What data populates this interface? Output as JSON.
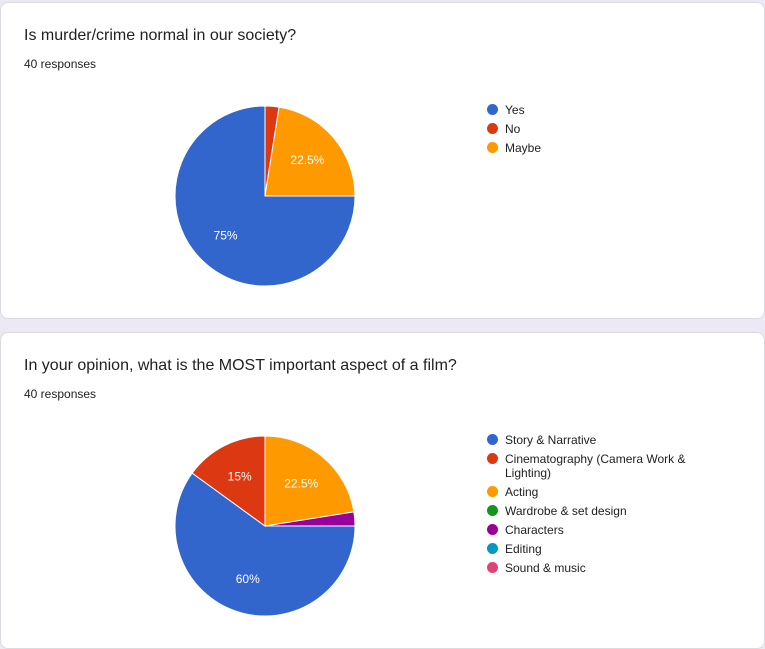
{
  "chart_data": [
    {
      "type": "pie",
      "title": "Is murder/crime normal in our society?",
      "responses": "40 responses",
      "categories": [
        "Yes",
        "No",
        "Maybe"
      ],
      "values": [
        75,
        2.5,
        22.5
      ],
      "colors": [
        "#3366cc",
        "#dc3912",
        "#ff9900"
      ],
      "data_labels": [
        "75%",
        "",
        "22.5%"
      ],
      "draw_order": [
        1,
        2,
        0
      ],
      "legend": "right"
    },
    {
      "type": "pie",
      "title": "In your opinion, what is the MOST important aspect of a film?",
      "responses": "40 responses",
      "categories": [
        "Story & Narrative",
        "Cinematography (Camera Work & Lighting)",
        "Acting",
        "Wardrobe & set design",
        "Characters",
        "Editing",
        "Sound & music"
      ],
      "values": [
        60,
        15,
        22.5,
        0,
        2.5,
        0,
        0
      ],
      "colors": [
        "#3366cc",
        "#dc3912",
        "#ff9900",
        "#109618",
        "#990099",
        "#0099c6",
        "#dd4477"
      ],
      "data_labels": [
        "60%",
        "15%",
        "22.5%",
        "",
        "",
        "",
        ""
      ],
      "draw_order": [
        2,
        4,
        0,
        1
      ],
      "legend": "right"
    }
  ]
}
